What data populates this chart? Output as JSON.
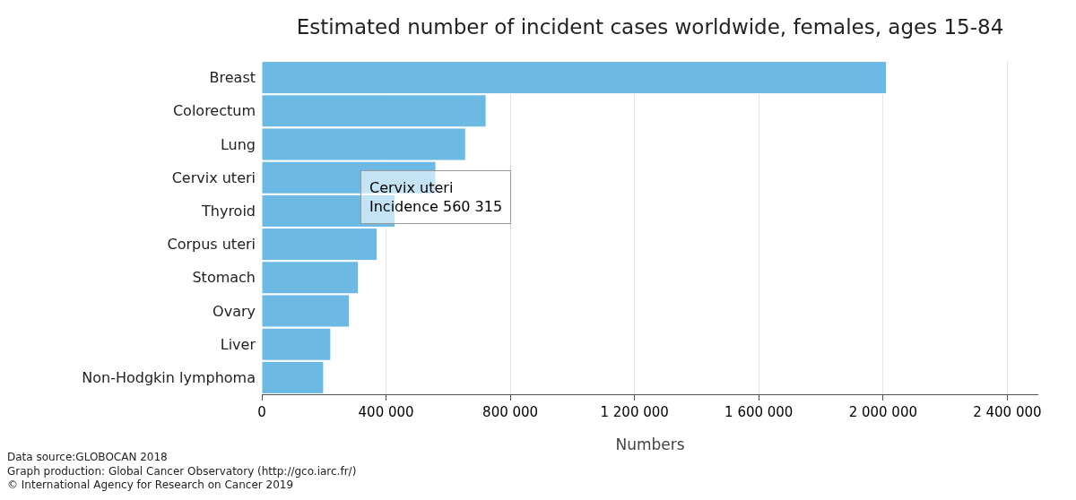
{
  "chart_data": {
    "type": "bar",
    "orientation": "horizontal",
    "title": "Estimated number of incident cases worldwide, females, ages 15-84",
    "xlabel": "Numbers",
    "categories": [
      "Breast",
      "Colorectum",
      "Lung",
      "Cervix uteri",
      "Thyroid",
      "Corpus uteri",
      "Stomach",
      "Ovary",
      "Liver",
      "Non-Hodgkin lymphoma"
    ],
    "values": [
      2011000,
      722000,
      656000,
      560315,
      429000,
      371000,
      311000,
      282000,
      222000,
      199000
    ],
    "color": "#6cb9e4",
    "xlim": [
      0,
      2500000
    ],
    "xticks": [
      0,
      {
        "value": 400000,
        "label": "400 000"
      },
      {
        "value": 800000,
        "label": "800 000"
      },
      {
        "value": 1200000,
        "label": "1 200 000"
      },
      {
        "value": 1600000,
        "label": "1 600 000"
      },
      {
        "value": 2000000,
        "label": "2 000 000"
      },
      {
        "value": 2400000,
        "label": "2 400 000"
      }
    ],
    "grid": "x",
    "annotations": [
      {
        "text": "Cervix uteri\nIncidence 560 315",
        "x": 560315,
        "y": "Cervix uteri"
      },
      "Data source:GLOBOCAN 2018\nGraph production: Global Cancer Observatory (http://gco.iarc.fr/)\n© International Agency for Research on Cancer 2019"
    ]
  }
}
